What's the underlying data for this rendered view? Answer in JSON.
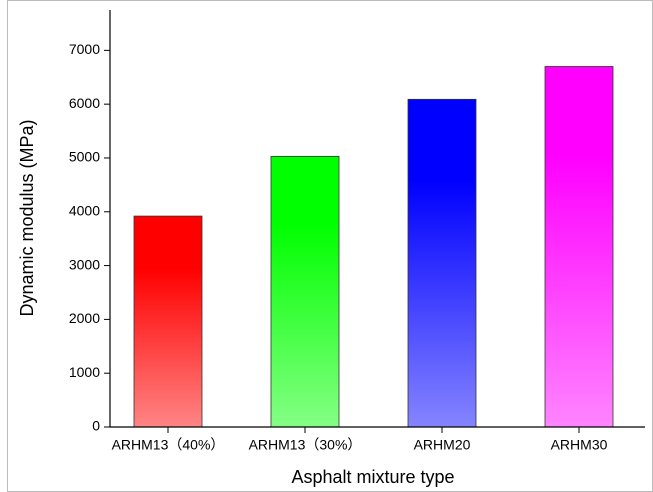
{
  "chart_data": {
    "type": "bar",
    "x_label": "Asphalt mixture type",
    "y_label": "Dynamic modulus (MPa)",
    "categories": [
      "ARHM13（40%）",
      "ARHM13（30%）",
      "ARHM20",
      "ARHM30"
    ],
    "values": [
      3920,
      5030,
      6090,
      6700
    ],
    "colors": [
      "#ff0000",
      "#00ff00",
      "#0000ff",
      "#ff00ff"
    ],
    "ylim": [
      0,
      7750
    ],
    "yticks": [
      0,
      1000,
      2000,
      3000,
      4000,
      5000,
      6000,
      7000
    ]
  }
}
